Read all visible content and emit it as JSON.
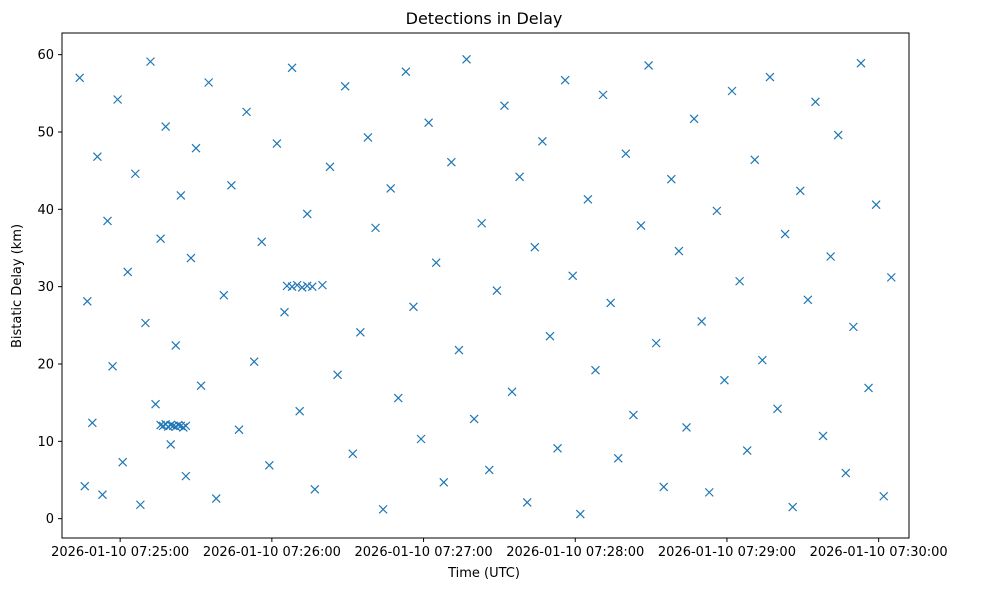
{
  "chart_data": {
    "type": "scatter",
    "title": "Detections in Delay",
    "xlabel": "Time (UTC)",
    "ylabel": "Bistatic Delay (km)",
    "x_ticks": [
      "2026-01-10 07:25:00",
      "2026-01-10 07:26:00",
      "2026-01-10 07:27:00",
      "2026-01-10 07:28:00",
      "2026-01-10 07:29:00",
      "2026-01-10 07:30:00"
    ],
    "y_ticks": [
      "0",
      "10",
      "20",
      "30",
      "40",
      "50",
      "60"
    ],
    "xlim": [
      "2026-01-10 07:24:37",
      "2026-01-10 07:30:12"
    ],
    "ylim": [
      -2.5,
      62.8
    ],
    "marker": "x",
    "grid": false,
    "colors": {
      "series": "#1f77b4",
      "axes": "#000000"
    },
    "series": [
      {
        "x": [
          "2026-01-10 07:24:44",
          "2026-01-10 07:24:46",
          "2026-01-10 07:24:47",
          "2026-01-10 07:24:49",
          "2026-01-10 07:24:51",
          "2026-01-10 07:24:53",
          "2026-01-10 07:24:55",
          "2026-01-10 07:24:57",
          "2026-01-10 07:24:59",
          "2026-01-10 07:25:01",
          "2026-01-10 07:25:03",
          "2026-01-10 07:25:06",
          "2026-01-10 07:25:08",
          "2026-01-10 07:25:10",
          "2026-01-10 07:25:12",
          "2026-01-10 07:25:14",
          "2026-01-10 07:25:16",
          "2026-01-10 07:25:18",
          "2026-01-10 07:25:20",
          "2026-01-10 07:25:22",
          "2026-01-10 07:25:24",
          "2026-01-10 07:25:26",
          "2026-01-10 07:25:28",
          "2026-01-10 07:25:30",
          "2026-01-10 07:25:32",
          "2026-01-10 07:25:35",
          "2026-01-10 07:25:38",
          "2026-01-10 07:25:41",
          "2026-01-10 07:25:44",
          "2026-01-10 07:25:47",
          "2026-01-10 07:25:50",
          "2026-01-10 07:25:53",
          "2026-01-10 07:25:56",
          "2026-01-10 07:25:59",
          "2026-01-10 07:26:02",
          "2026-01-10 07:26:05",
          "2026-01-10 07:26:08",
          "2026-01-10 07:26:11",
          "2026-01-10 07:26:14",
          "2026-01-10 07:26:17",
          "2026-01-10 07:26:20",
          "2026-01-10 07:26:23",
          "2026-01-10 07:26:26",
          "2026-01-10 07:26:29",
          "2026-01-10 07:26:32",
          "2026-01-10 07:26:35",
          "2026-01-10 07:26:38",
          "2026-01-10 07:26:41",
          "2026-01-10 07:26:44",
          "2026-01-10 07:26:47",
          "2026-01-10 07:26:50",
          "2026-01-10 07:26:53",
          "2026-01-10 07:26:56",
          "2026-01-10 07:26:59",
          "2026-01-10 07:27:02",
          "2026-01-10 07:27:05",
          "2026-01-10 07:27:08",
          "2026-01-10 07:27:11",
          "2026-01-10 07:27:14",
          "2026-01-10 07:27:17",
          "2026-01-10 07:27:20",
          "2026-01-10 07:27:23",
          "2026-01-10 07:27:26",
          "2026-01-10 07:27:29",
          "2026-01-10 07:27:32",
          "2026-01-10 07:27:35",
          "2026-01-10 07:27:38",
          "2026-01-10 07:27:41",
          "2026-01-10 07:27:44",
          "2026-01-10 07:27:47",
          "2026-01-10 07:27:50",
          "2026-01-10 07:27:53",
          "2026-01-10 07:27:56",
          "2026-01-10 07:27:59",
          "2026-01-10 07:28:02",
          "2026-01-10 07:28:05",
          "2026-01-10 07:28:08",
          "2026-01-10 07:28:11",
          "2026-01-10 07:28:14",
          "2026-01-10 07:28:17",
          "2026-01-10 07:28:20",
          "2026-01-10 07:28:23",
          "2026-01-10 07:28:26",
          "2026-01-10 07:28:29",
          "2026-01-10 07:28:32",
          "2026-01-10 07:28:35",
          "2026-01-10 07:28:38",
          "2026-01-10 07:28:41",
          "2026-01-10 07:28:44",
          "2026-01-10 07:28:47",
          "2026-01-10 07:28:50",
          "2026-01-10 07:28:53",
          "2026-01-10 07:28:56",
          "2026-01-10 07:28:59",
          "2026-01-10 07:29:02",
          "2026-01-10 07:29:05",
          "2026-01-10 07:29:08",
          "2026-01-10 07:29:11",
          "2026-01-10 07:29:14",
          "2026-01-10 07:29:17",
          "2026-01-10 07:29:20",
          "2026-01-10 07:29:23",
          "2026-01-10 07:29:26",
          "2026-01-10 07:29:29",
          "2026-01-10 07:29:32",
          "2026-01-10 07:29:35",
          "2026-01-10 07:29:38",
          "2026-01-10 07:29:41",
          "2026-01-10 07:29:44",
          "2026-01-10 07:29:47",
          "2026-01-10 07:29:50",
          "2026-01-10 07:29:53",
          "2026-01-10 07:29:56",
          "2026-01-10 07:29:59",
          "2026-01-10 07:30:02",
          "2026-01-10 07:30:05",
          "2026-01-10 07:25:16",
          "2026-01-10 07:25:17",
          "2026-01-10 07:25:18",
          "2026-01-10 07:25:19",
          "2026-01-10 07:25:20",
          "2026-01-10 07:25:21",
          "2026-01-10 07:25:22",
          "2026-01-10 07:25:23",
          "2026-01-10 07:25:24",
          "2026-01-10 07:25:25",
          "2026-01-10 07:25:26",
          "2026-01-10 07:26:06",
          "2026-01-10 07:26:08",
          "2026-01-10 07:26:10",
          "2026-01-10 07:26:12",
          "2026-01-10 07:26:14",
          "2026-01-10 07:26:16"
        ],
        "y": [
          57.0,
          4.2,
          28.1,
          12.4,
          46.8,
          3.1,
          38.5,
          19.7,
          54.2,
          7.3,
          31.9,
          44.6,
          1.8,
          25.3,
          59.1,
          14.8,
          36.2,
          50.7,
          9.6,
          22.4,
          41.8,
          5.5,
          33.7,
          47.9,
          17.2,
          56.4,
          2.6,
          28.9,
          43.1,
          11.5,
          52.6,
          20.3,
          35.8,
          6.9,
          48.5,
          26.7,
          58.3,
          13.9,
          39.4,
          3.8,
          30.2,
          45.5,
          18.6,
          55.9,
          8.4,
          24.1,
          49.3,
          37.6,
          1.2,
          42.7,
          15.6,
          57.8,
          27.4,
          10.3,
          51.2,
          33.1,
          4.7,
          46.1,
          21.8,
          59.4,
          12.9,
          38.2,
          6.3,
          29.5,
          53.4,
          16.4,
          44.2,
          2.1,
          35.1,
          48.8,
          23.6,
          9.1,
          56.7,
          31.4,
          0.6,
          41.3,
          19.2,
          54.8,
          27.9,
          7.8,
          47.2,
          13.4,
          37.9,
          58.6,
          22.7,
          4.1,
          43.9,
          34.6,
          11.8,
          51.7,
          25.5,
          3.4,
          39.8,
          17.9,
          55.3,
          30.7,
          8.8,
          46.4,
          20.5,
          57.1,
          14.2,
          36.8,
          1.5,
          42.4,
          28.3,
          53.9,
          10.7,
          33.9,
          49.6,
          5.9,
          24.8,
          58.9,
          16.9,
          40.6,
          2.9,
          31.2,
          12.1,
          12.0,
          12.2,
          11.9,
          12.1,
          12.0,
          11.9,
          12.1,
          12.0,
          11.8,
          12.0,
          30.1,
          30.0,
          30.2,
          29.9,
          30.1,
          30.0
        ]
      }
    ]
  }
}
